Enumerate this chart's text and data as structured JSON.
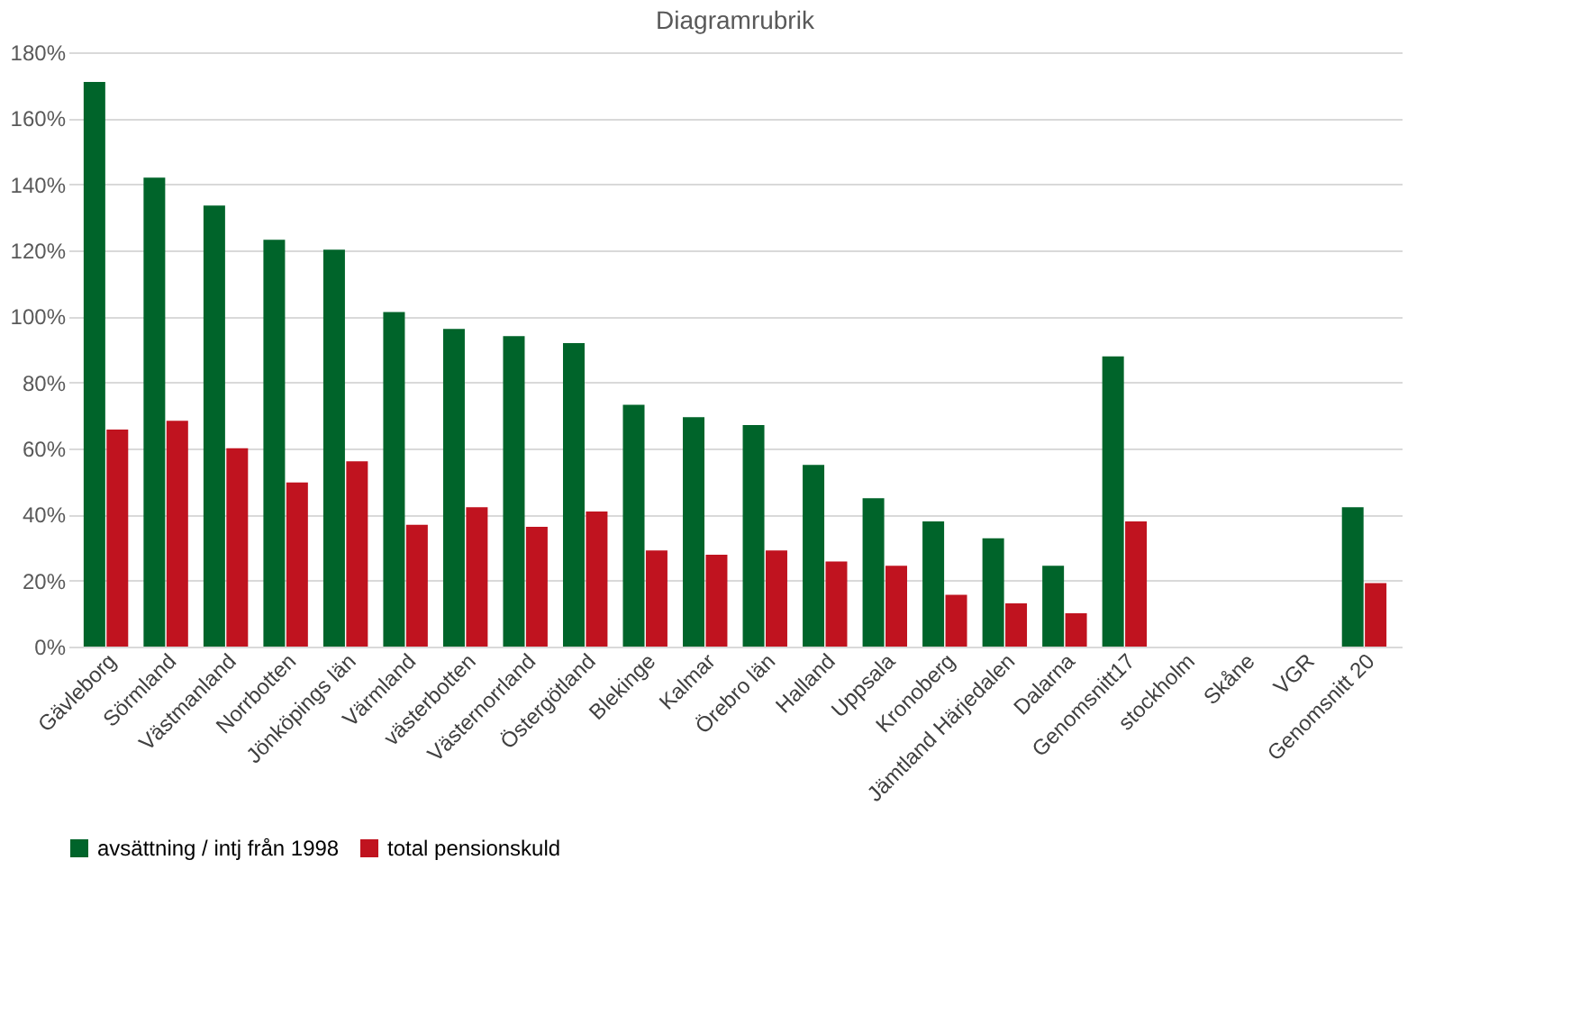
{
  "chart_data": {
    "type": "bar",
    "title": "Diagramrubrik",
    "categories": [
      "Gävleborg",
      "Sörmland",
      "Västmanland",
      "Norrbotten",
      "Jönköpings län",
      "Värmland",
      "västerbotten",
      "Västernorrland",
      "Östergötland",
      "Blekinge",
      "Kalmar",
      "Örebro län",
      "Halland",
      "Uppsala",
      "Kronoberg",
      "Jämtland Härjedalen",
      "Dalarna",
      "Genomsnitt17",
      "stockholm",
      "Skåne",
      "VGR",
      "Genomsnitt 20"
    ],
    "series": [
      {
        "name": "avsättning / intj från 1998",
        "color": "#00642a",
        "values": [
          171,
          142,
          133.6,
          123.2,
          120.2,
          101.3,
          96.2,
          94,
          91.9,
          73.2,
          69.5,
          67.1,
          55,
          44.9,
          37.9,
          32.8,
          24.5,
          87.9,
          null,
          null,
          null,
          42.2
        ]
      },
      {
        "name": "total pensionskuld",
        "color": "#c0131f",
        "values": [
          65.7,
          68.4,
          60.1,
          49.7,
          56.1,
          36.9,
          42.2,
          36.3,
          40.9,
          29.1,
          27.8,
          29.1,
          25.8,
          24.5,
          15.7,
          13.1,
          10.1,
          37.9,
          null,
          null,
          null,
          19.2
        ]
      }
    ],
    "ylim": [
      0,
      180
    ],
    "yticks": [
      {
        "value": 0,
        "label": "0%"
      },
      {
        "value": 20,
        "label": "20%"
      },
      {
        "value": 40,
        "label": "40%"
      },
      {
        "value": 60,
        "label": "60%"
      },
      {
        "value": 80,
        "label": "80%"
      },
      {
        "value": 100,
        "label": "100%"
      },
      {
        "value": 120,
        "label": "120%"
      },
      {
        "value": 140,
        "label": "140%"
      },
      {
        "value": 160,
        "label": "160%"
      },
      {
        "value": 180,
        "label": "180%"
      }
    ],
    "grid": "y",
    "legend": "bottom"
  }
}
